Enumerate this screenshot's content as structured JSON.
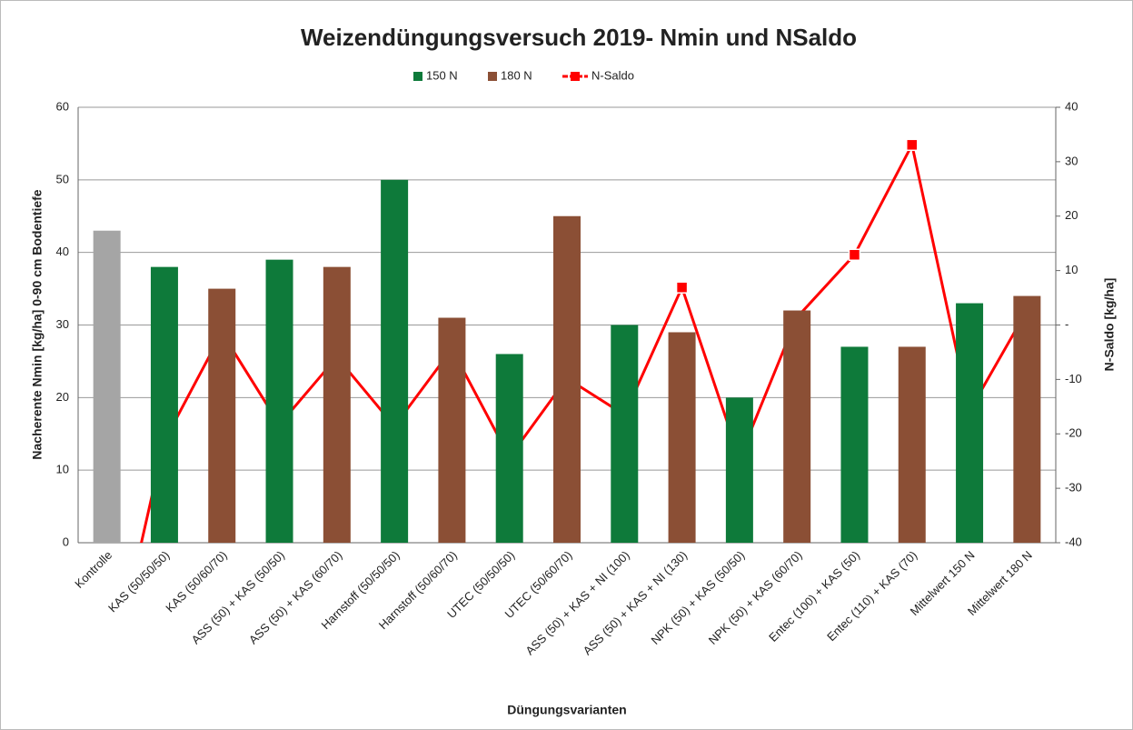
{
  "chart_data": {
    "type": "bar",
    "title": "Weizendüngungsversuch 2019- Nmin und NSaldo",
    "x_label": "Düngungsvarianten",
    "y_label": "Nacherente Nmin [kg/ha] 0-90 cm Bodentiefe",
    "y2_label": "N-Saldo [kg/ha]",
    "categories": [
      "Kontrolle",
      "KAS (50/50/50)",
      "KAS (50/60/70)",
      "ASS (50) + KAS (50/50)",
      "ASS (50) + KAS (60/70)",
      "Harnstoff (50/50/50)",
      "Harnstoff (50/60/70)",
      "UTEC (50/50/50)",
      "UTEC (50/60/70)",
      "ASS (50) + KAS + NI (100)",
      "ASS (50) + KAS + NI (130)",
      "NPK (50) + KAS (50/50)",
      "NPK (50) + KAS (60/70)",
      "Entec (100) + KAS (50)",
      "Entec (110) + KAS (70)",
      "Mittelwert 150 N",
      "Mittelwert 180 N"
    ],
    "series": [
      {
        "color": "#a5a5a5",
        "values": [
          43,
          null,
          null,
          null,
          null,
          null,
          null,
          null,
          null,
          null,
          null,
          null,
          null,
          null,
          null,
          null,
          null
        ]
      },
      {
        "name": "150 N",
        "color": "#0e7a3a",
        "values": [
          null,
          38,
          null,
          39,
          null,
          50,
          null,
          26,
          null,
          30,
          null,
          20,
          null,
          27,
          null,
          33,
          null
        ]
      },
      {
        "name": "180 N",
        "color": "#8b4f35",
        "values": [
          null,
          null,
          35,
          null,
          38,
          null,
          31,
          null,
          45,
          null,
          29,
          null,
          32,
          null,
          27,
          null,
          34
        ]
      },
      {
        "name": "N-Saldo",
        "type": "line",
        "axis": "y2",
        "color": "#ff0000",
        "values": [
          -68,
          -21.3,
          -1.4,
          -18.3,
          -5.9,
          -18.6,
          -4.4,
          -24.3,
          -9.8,
          -16.5,
          6.9,
          -24.5,
          1.4,
          12.9,
          33.1,
          -15.8,
          2.7
        ]
      }
    ],
    "ylim": [
      0,
      60
    ],
    "yticks": [
      0,
      10,
      20,
      30,
      40,
      50,
      60
    ],
    "y2lim": [
      -40,
      40
    ],
    "y2ticks": [
      -40,
      -30,
      -20,
      -10,
      {
        "value": 0,
        "label": "-"
      },
      10,
      20,
      30,
      40
    ],
    "grid": true,
    "legend": "top"
  }
}
